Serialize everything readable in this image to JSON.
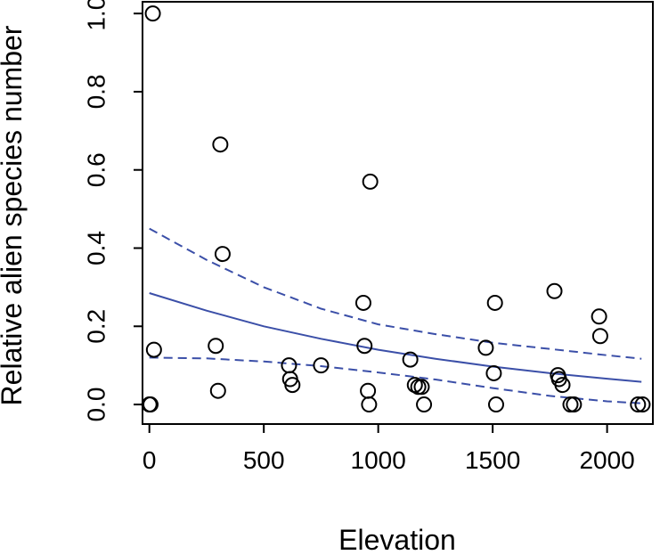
{
  "chart_data": {
    "type": "scatter",
    "xlabel": "Elevation",
    "ylabel": "Relative alien species number",
    "xlim": [
      -30,
      2200
    ],
    "ylim": [
      -0.05,
      1.03
    ],
    "x_ticks": [
      0,
      500,
      1000,
      1500,
      2000
    ],
    "x_tick_labels": [
      "0",
      "500",
      "1000",
      "1500",
      "2000"
    ],
    "y_ticks": [
      0.0,
      0.2,
      0.4,
      0.6,
      0.8,
      1.0
    ],
    "y_tick_labels": [
      "0.0",
      "0.2",
      "0.4",
      "0.6",
      "0.8",
      "1.0"
    ],
    "grid": false,
    "legend": "none",
    "colors": {
      "points": "#000000",
      "fit": "#3b4fa8",
      "frame": "#000000"
    },
    "points": [
      {
        "x": 0,
        "y": 0.0
      },
      {
        "x": 5,
        "y": 0.0
      },
      {
        "x": 15,
        "y": 1.0
      },
      {
        "x": 20,
        "y": 0.14
      },
      {
        "x": 290,
        "y": 0.15
      },
      {
        "x": 300,
        "y": 0.035
      },
      {
        "x": 310,
        "y": 0.665
      },
      {
        "x": 320,
        "y": 0.385
      },
      {
        "x": 610,
        "y": 0.1
      },
      {
        "x": 615,
        "y": 0.065
      },
      {
        "x": 625,
        "y": 0.05
      },
      {
        "x": 750,
        "y": 0.1
      },
      {
        "x": 935,
        "y": 0.26
      },
      {
        "x": 940,
        "y": 0.15
      },
      {
        "x": 955,
        "y": 0.035
      },
      {
        "x": 960,
        "y": 0.0
      },
      {
        "x": 965,
        "y": 0.57
      },
      {
        "x": 1140,
        "y": 0.115
      },
      {
        "x": 1160,
        "y": 0.05
      },
      {
        "x": 1175,
        "y": 0.045
      },
      {
        "x": 1190,
        "y": 0.045
      },
      {
        "x": 1200,
        "y": 0.0
      },
      {
        "x": 1470,
        "y": 0.145
      },
      {
        "x": 1505,
        "y": 0.08
      },
      {
        "x": 1510,
        "y": 0.26
      },
      {
        "x": 1515,
        "y": 0.0
      },
      {
        "x": 1770,
        "y": 0.29
      },
      {
        "x": 1785,
        "y": 0.075
      },
      {
        "x": 1790,
        "y": 0.065
      },
      {
        "x": 1805,
        "y": 0.05
      },
      {
        "x": 1840,
        "y": 0.0
      },
      {
        "x": 1855,
        "y": 0.0
      },
      {
        "x": 1965,
        "y": 0.225
      },
      {
        "x": 1970,
        "y": 0.175
      },
      {
        "x": 2135,
        "y": 0.0
      },
      {
        "x": 2155,
        "y": 0.0
      }
    ],
    "fit_line": {
      "x": [
        0,
        250,
        500,
        750,
        1000,
        1250,
        1500,
        1750,
        2000,
        2150
      ],
      "y": [
        0.285,
        0.24,
        0.2,
        0.168,
        0.14,
        0.117,
        0.097,
        0.08,
        0.066,
        0.058
      ],
      "style": "solid"
    },
    "upper_band": {
      "x": [
        0,
        250,
        500,
        750,
        1000,
        1250,
        1500,
        1750,
        2000,
        2150
      ],
      "y": [
        0.45,
        0.37,
        0.3,
        0.245,
        0.205,
        0.18,
        0.158,
        0.142,
        0.126,
        0.117
      ],
      "style": "dashed"
    },
    "lower_band": {
      "x": [
        0,
        250,
        500,
        750,
        1000,
        1250,
        1500,
        1750,
        2000,
        2150
      ],
      "y": [
        0.12,
        0.118,
        0.11,
        0.098,
        0.082,
        0.064,
        0.042,
        0.022,
        0.008,
        0.003
      ],
      "style": "dashed"
    }
  }
}
